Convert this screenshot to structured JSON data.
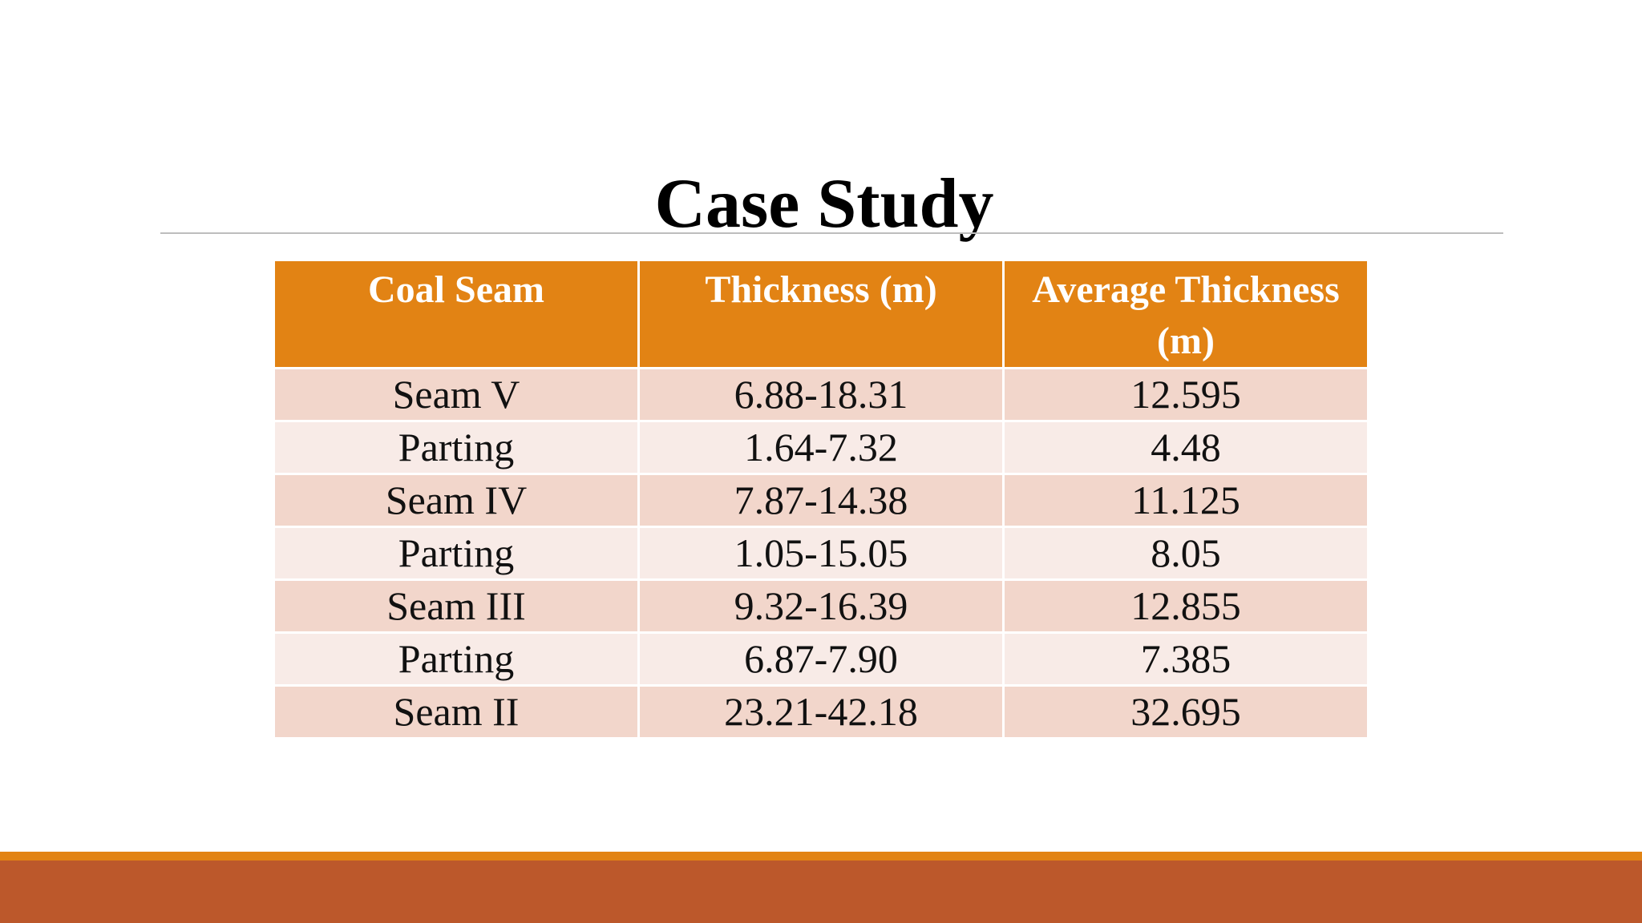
{
  "slide": {
    "title": "Case Study"
  },
  "table": {
    "headers": [
      "Coal Seam",
      "Thickness (m)",
      "Average Thickness (m)"
    ],
    "rows": [
      [
        "Seam V",
        "6.88-18.31",
        "12.595"
      ],
      [
        "Parting",
        "1.64-7.32",
        "4.48"
      ],
      [
        "Seam IV",
        "7.87-14.38",
        "11.125"
      ],
      [
        "Parting",
        "1.05-15.05",
        "8.05"
      ],
      [
        "Seam III",
        "9.32-16.39",
        "12.855"
      ],
      [
        "Parting",
        "6.87-7.90",
        "7.385"
      ],
      [
        "Seam II",
        "23.21-42.18",
        "32.695"
      ]
    ]
  },
  "colors": {
    "header": "#e28314",
    "row_odd": "#f2d6cb",
    "row_even": "#f8ebe7",
    "footer_accent": "#e28314",
    "footer_bar": "#bc582b"
  }
}
